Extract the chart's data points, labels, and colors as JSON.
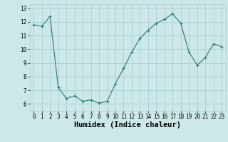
{
  "x": [
    0,
    1,
    2,
    3,
    4,
    5,
    6,
    7,
    8,
    9,
    10,
    11,
    12,
    13,
    14,
    15,
    16,
    17,
    18,
    19,
    20,
    21,
    22,
    23
  ],
  "y": [
    11.8,
    11.7,
    12.4,
    7.2,
    6.4,
    6.6,
    6.2,
    6.3,
    6.05,
    6.2,
    7.5,
    8.6,
    9.8,
    10.8,
    11.4,
    11.9,
    12.2,
    12.6,
    11.9,
    9.8,
    8.85,
    9.4,
    10.4,
    10.2
  ],
  "line_color": "#2a7a6f",
  "marker": "+",
  "marker_size": 3,
  "marker_linewidth": 0.8,
  "bg_color": "#cce8e8",
  "grid_color": "#aacfcf",
  "xlabel": "Humidex (Indice chaleur)",
  "ylim": [
    5.5,
    13.3
  ],
  "xlim": [
    -0.5,
    23.5
  ],
  "yticks": [
    6,
    7,
    8,
    9,
    10,
    11,
    12,
    13
  ],
  "xticks": [
    0,
    1,
    2,
    3,
    4,
    5,
    6,
    7,
    8,
    9,
    10,
    11,
    12,
    13,
    14,
    15,
    16,
    17,
    18,
    19,
    20,
    21,
    22,
    23
  ],
  "tick_fontsize": 5.5,
  "xlabel_fontsize": 7.5,
  "xlabel_fontweight": "bold"
}
